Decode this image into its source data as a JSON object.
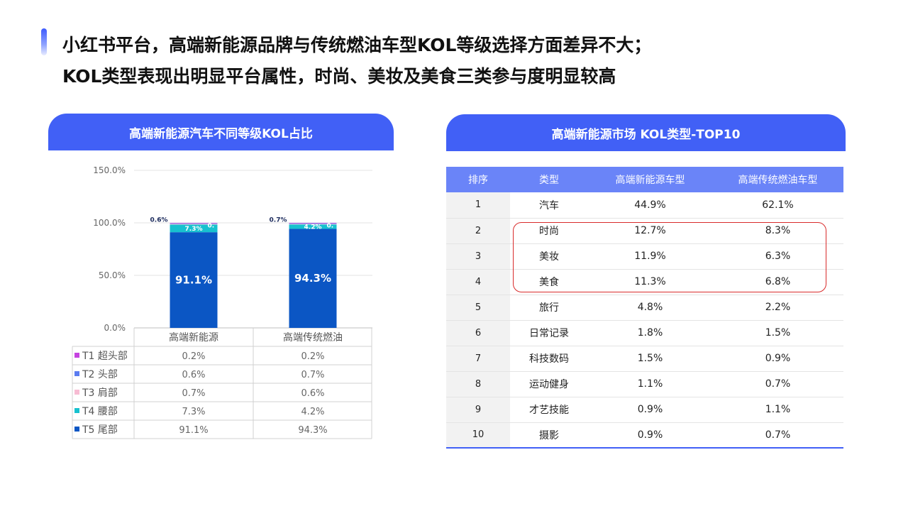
{
  "headline": {
    "line1": "小红书平台，高端新能源品牌与传统燃油车型KOL等级选择方面差异不大；",
    "line2": "KOL类型表现出明显平台属性，时尚、美妆及美食三类参与度明显较高"
  },
  "left_panel": {
    "title": "高端新能源汽车不同等级KOL占比"
  },
  "right_panel": {
    "title": "高端新能源市场 KOL类型-TOP10"
  },
  "chart_data": [
    {
      "type": "bar",
      "stacked": true,
      "title": "高端新能源汽车不同等级KOL占比",
      "categories": [
        "高端新能源",
        "高端传统燃油"
      ],
      "ylim": [
        0,
        150
      ],
      "yticks": [
        "0.0%",
        "50.0%",
        "100.0%",
        "150.0%"
      ],
      "grid": true,
      "legend": "data-table",
      "series": [
        {
          "name": "T5 尾部",
          "values": [
            91.1,
            94.3
          ],
          "labels": [
            "91.1%",
            "94.3%"
          ],
          "color": "#0b56c4"
        },
        {
          "name": "T4 腰部",
          "values": [
            7.3,
            4.2
          ],
          "labels": [
            "7.3%",
            "4.2%"
          ],
          "color": "#17c1cf"
        },
        {
          "name": "T3 肩部",
          "values": [
            0.7,
            0.6
          ],
          "labels": [
            "0.7%",
            "0.6%"
          ],
          "color": "#f7bcd3"
        },
        {
          "name": "T2 头部",
          "values": [
            0.6,
            0.7
          ],
          "labels": [
            "0.6%",
            "0.7%"
          ],
          "color": "#5b7cf0"
        },
        {
          "name": "T1 超头部",
          "values": [
            0.2,
            0.2
          ],
          "labels": [
            "0.2%",
            "0.2%"
          ],
          "color": "#c543e0"
        }
      ],
      "visible_bar_labels": [
        {
          "series": "T5 尾部",
          "texts": [
            "91.1%",
            "94.3%"
          ]
        },
        {
          "series": "T4 腰部",
          "texts": [
            "7.3%",
            "4.2%"
          ]
        },
        {
          "series": "T2 头部",
          "texts": [
            "0.6%",
            "0.7%"
          ]
        },
        {
          "series": "T3 肩部",
          "texts": [
            "0.",
            "0."
          ]
        }
      ],
      "data_table": {
        "rows": [
          {
            "name": "T1 超头部",
            "values": [
              "0.2%",
              "0.2%"
            ]
          },
          {
            "name": "T2 头部",
            "values": [
              "0.6%",
              "0.7%"
            ]
          },
          {
            "name": "T3 肩部",
            "values": [
              "0.7%",
              "0.6%"
            ]
          },
          {
            "name": "T4 腰部",
            "values": [
              "7.3%",
              "4.2%"
            ]
          },
          {
            "name": "T5 尾部",
            "values": [
              "91.1%",
              "94.3%"
            ]
          }
        ]
      }
    },
    {
      "type": "table",
      "title": "高端新能源市场 KOL类型-TOP10",
      "columns": [
        "排序",
        "类型",
        "高端新能源车型",
        "高端传统燃油车型"
      ],
      "rows": [
        [
          "1",
          "汽车",
          "44.9%",
          "62.1%"
        ],
        [
          "2",
          "时尚",
          "12.7%",
          "8.3%"
        ],
        [
          "3",
          "美妆",
          "11.9%",
          "6.3%"
        ],
        [
          "4",
          "美食",
          "11.3%",
          "6.8%"
        ],
        [
          "5",
          "旅行",
          "4.8%",
          "2.2%"
        ],
        [
          "6",
          "日常记录",
          "1.8%",
          "1.5%"
        ],
        [
          "7",
          "科技数码",
          "1.5%",
          "0.9%"
        ],
        [
          "8",
          "运动健身",
          "1.1%",
          "0.7%"
        ],
        [
          "9",
          "才艺技能",
          "0.9%",
          "1.1%"
        ],
        [
          "10",
          "摄影",
          "0.9%",
          "0.7%"
        ]
      ],
      "highlighted_rows": [
        "2",
        "3",
        "4"
      ],
      "highlight_color": "#d92b2b"
    }
  ],
  "colors": {
    "header_blue": "#4160f6",
    "table_header": "#6a84f8"
  }
}
